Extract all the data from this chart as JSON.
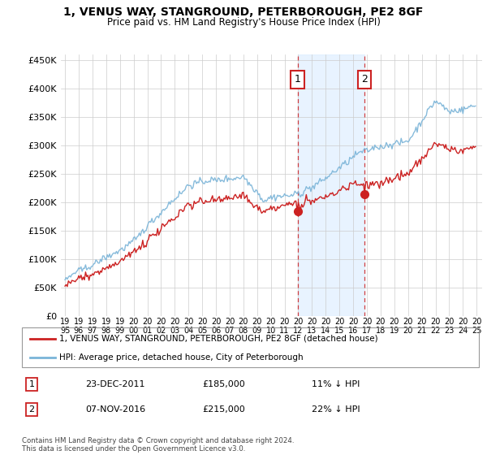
{
  "title": "1, VENUS WAY, STANGROUND, PETERBOROUGH, PE2 8GF",
  "subtitle": "Price paid vs. HM Land Registry's House Price Index (HPI)",
  "legend_line1": "1, VENUS WAY, STANGROUND, PETERBOROUGH, PE2 8GF (detached house)",
  "legend_line2": "HPI: Average price, detached house, City of Peterborough",
  "sale1_date": "23-DEC-2011",
  "sale1_price": 185000,
  "sale1_label": "11% ↓ HPI",
  "sale2_date": "07-NOV-2016",
  "sale2_price": 215000,
  "sale2_label": "22% ↓ HPI",
  "footer": "Contains HM Land Registry data © Crown copyright and database right 2024.\nThis data is licensed under the Open Government Licence v3.0.",
  "hpi_color": "#7ab4d8",
  "price_color": "#cc2222",
  "shade_color": "#ddeeff",
  "ylim_min": 0,
  "ylim_max": 460000,
  "sale1_x": 2011.958,
  "sale2_x": 2016.833
}
